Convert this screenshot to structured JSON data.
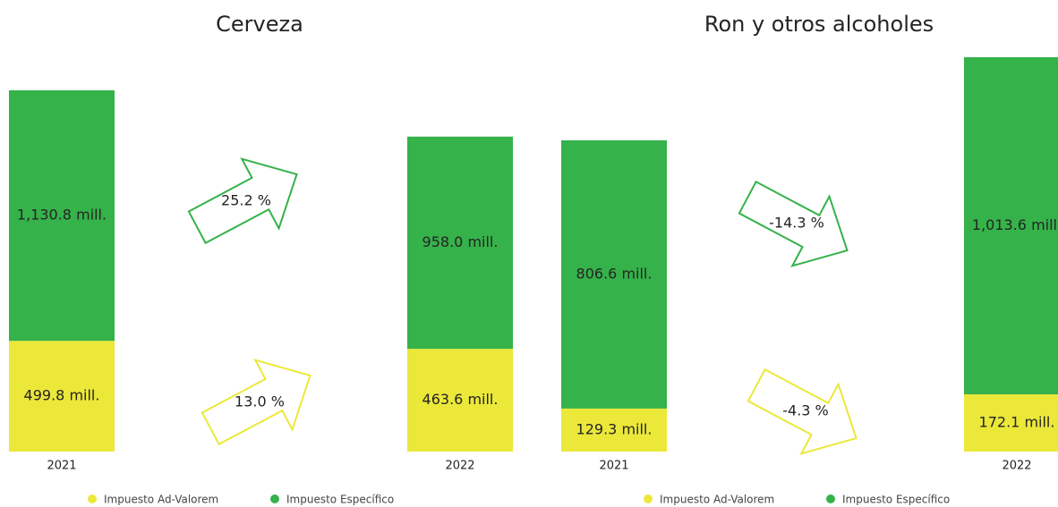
{
  "chart_data": [
    {
      "type": "bar",
      "stacked": true,
      "title": "Cerveza",
      "categories": [
        "2021",
        "2022"
      ],
      "series": [
        {
          "name": "Impuesto Ad-Valorem",
          "color": "#ebe83a",
          "values": [
            499.8,
            463.6
          ],
          "value_labels": [
            "499.8 mill.",
            "463.6 mill."
          ]
        },
        {
          "name": "Impuesto Específico",
          "color": "#35b24a",
          "values": [
            1130.8,
            958.0
          ],
          "value_labels": [
            "1,130.8 mill.",
            "958.0 mill."
          ]
        }
      ],
      "annotations": [
        {
          "text": "25.2 %",
          "color": "#35b24a"
        },
        {
          "text": "13.0 %",
          "color": "#ebe83a"
        }
      ]
    },
    {
      "type": "bar",
      "stacked": true,
      "title": "Ron y otros alcoholes",
      "categories": [
        "2021",
        "2022"
      ],
      "series": [
        {
          "name": "Impuesto Ad-Valorem",
          "color": "#ebe83a",
          "values": [
            129.3,
            172.1
          ],
          "value_labels": [
            "129.3 mill.",
            "172.1 mill."
          ]
        },
        {
          "name": "Impuesto Específico",
          "color": "#35b24a",
          "values": [
            806.6,
            1013.6
          ],
          "value_labels": [
            "806.6 mill.",
            "1,013.6 mill."
          ]
        }
      ],
      "annotations": [
        {
          "text": "-14.3 %",
          "color": "#35b24a"
        },
        {
          "text": "-4.3 %",
          "color": "#ebe83a"
        }
      ]
    }
  ]
}
